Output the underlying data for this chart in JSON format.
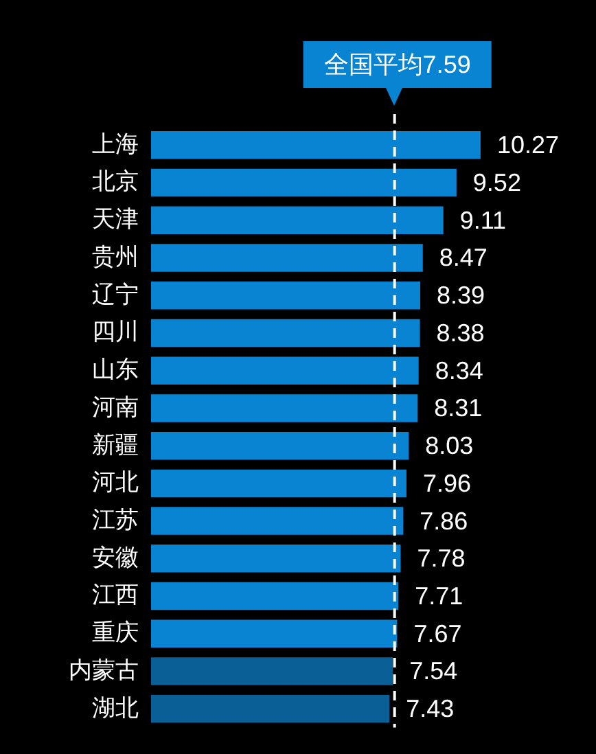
{
  "chart_data": {
    "type": "bar",
    "orientation": "horizontal",
    "categories": [
      "上海",
      "北京",
      "天津",
      "贵州",
      "辽宁",
      "四川",
      "山东",
      "河南",
      "新疆",
      "河北",
      "江苏",
      "安徽",
      "江西",
      "重庆",
      "内蒙古",
      "湖北"
    ],
    "values": [
      10.27,
      9.52,
      9.11,
      8.47,
      8.39,
      8.38,
      8.34,
      8.31,
      8.03,
      7.96,
      7.86,
      7.78,
      7.71,
      7.67,
      7.54,
      7.43
    ],
    "colors": [
      "#0984d2",
      "#0984d2",
      "#0984d2",
      "#0984d2",
      "#0984d2",
      "#0984d2",
      "#0984d2",
      "#0984d2",
      "#0984d2",
      "#0984d2",
      "#0984d2",
      "#0984d2",
      "#0984d2",
      "#0984d2",
      "#0a5f96",
      "#0a5f96"
    ],
    "data_labels": true,
    "ref_lines": [
      {
        "axis": "x",
        "value": 7.59,
        "label": "全国平均7.59",
        "color": "#ffffff",
        "line_style": "dashed"
      }
    ],
    "tick_labels": "y"
  }
}
